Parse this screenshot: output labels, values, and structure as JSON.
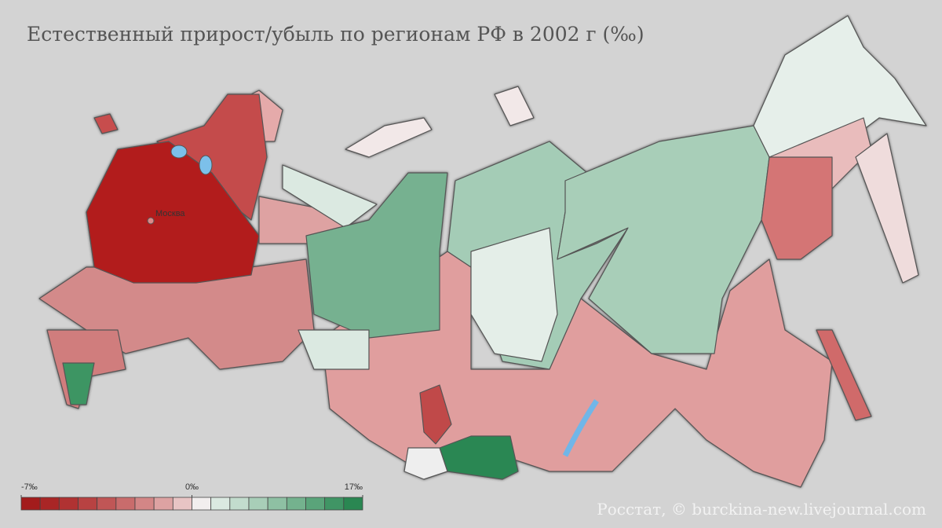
{
  "title": "Естественный прирост/убыль по регионам РФ в 2002 г (‰)",
  "city_label": "Москва",
  "source": "Росстат, © burckina-new.livejournal.com",
  "colorbar": {
    "lim": [
      -7,
      17
    ],
    "ticks": [
      {
        "value": -7,
        "label": "-7‰"
      },
      {
        "value": 0,
        "label": "0‰"
      },
      {
        "value": 17,
        "label": "17‰"
      }
    ],
    "colors": [
      "#a31c1c",
      "#a92626",
      "#b03232",
      "#b84242",
      "#c05656",
      "#c96c6c",
      "#d38686",
      "#dda2a2",
      "#e8c4c4",
      "#f2eeee",
      "#dbe9e1",
      "#c2dccd",
      "#a8ceb8",
      "#8ec0a3",
      "#74b28e",
      "#5aa47a",
      "#409565",
      "#2a8752"
    ]
  }
}
